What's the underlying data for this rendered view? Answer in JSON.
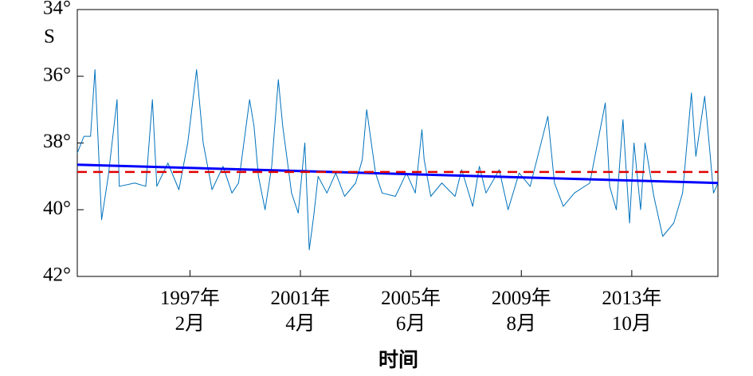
{
  "chart_data": {
    "type": "line",
    "x_label": "时间",
    "y_label": "S",
    "x": [
      "1992-11",
      "1993-02",
      "1993-05",
      "1993-07",
      "1993-10",
      "1994-01",
      "1994-05",
      "1994-06",
      "1995-01",
      "1995-06",
      "1995-09",
      "1995-11",
      "1996-04",
      "1996-09",
      "1997-01",
      "1997-05",
      "1997-08",
      "1997-12",
      "1998-05",
      "1998-09",
      "1998-12",
      "1999-05",
      "1999-07",
      "1999-09",
      "1999-12",
      "2000-03",
      "2000-06",
      "2000-08",
      "2000-12",
      "2001-03",
      "2001-06",
      "2001-08",
      "2001-10",
      "2001-12",
      "2002-04",
      "2002-08",
      "2002-12",
      "2003-05",
      "2003-08",
      "2003-10",
      "2004-02",
      "2004-05",
      "2004-11",
      "2005-04",
      "2005-08",
      "2005-11",
      "2005-12",
      "2006-03",
      "2006-08",
      "2007-02",
      "2007-05",
      "2007-10",
      "2008-01",
      "2008-04",
      "2008-10",
      "2009-02",
      "2009-07",
      "2009-12",
      "2010-08",
      "2010-11",
      "2011-03",
      "2011-08",
      "2012-03",
      "2012-10",
      "2012-12",
      "2013-03",
      "2013-06",
      "2013-09",
      "2013-11",
      "2014-02",
      "2014-04",
      "2014-08",
      "2014-12",
      "2015-05",
      "2015-09",
      "2016-01",
      "2016-03",
      "2016-07",
      "2016-09",
      "2016-11",
      "2017-01"
    ],
    "series": [
      {
        "color": "#0072bd",
        "width": 1,
        "values": [
          38.3,
          37.8,
          37.8,
          35.8,
          40.3,
          39,
          36.7,
          39.3,
          39.2,
          39.3,
          36.7,
          39.3,
          38.6,
          39.4,
          38,
          35.8,
          38,
          39.4,
          38.7,
          39.5,
          39.2,
          36.7,
          37.5,
          39,
          40,
          38.7,
          36.1,
          37.5,
          39.5,
          40.1,
          38,
          41.2,
          40.2,
          39,
          39.5,
          38.9,
          39.6,
          39.2,
          38.5,
          37,
          38.9,
          39.5,
          39.6,
          38.9,
          39.5,
          37.6,
          38.5,
          39.6,
          39.2,
          39.6,
          38.8,
          39.9,
          38.7,
          39.5,
          38.8,
          40,
          38.9,
          39.3,
          37.2,
          39.2,
          39.9,
          39.5,
          39.2,
          36.8,
          39.3,
          40,
          37.3,
          40.4,
          38,
          40,
          38,
          39.6,
          40.8,
          40.4,
          39.5,
          36.5,
          38.4,
          36.6,
          38,
          39.5,
          39.2
        ]
      },
      {
        "color": "#0000ff",
        "width": 3,
        "x": [
          "1992-11",
          "2017-01"
        ],
        "values": [
          38.65,
          39.2
        ]
      },
      {
        "color": "#e00000",
        "width": 2.5,
        "dash": true,
        "x": [
          "1992-11",
          "2017-01"
        ],
        "values": [
          38.87,
          38.87
        ]
      }
    ],
    "xlim": [
      "1992-11",
      "2017-01"
    ],
    "xticks": [
      {
        "value": "1997-02",
        "label": "1997年\n2月"
      },
      {
        "value": "2001-04",
        "label": "2001年\n4月"
      },
      {
        "value": "2005-06",
        "label": "2005年\n6月"
      },
      {
        "value": "2009-08",
        "label": "2009年\n8月"
      },
      {
        "value": "2013-10",
        "label": "2013年\n10月"
      }
    ],
    "ylim": [
      34,
      42
    ],
    "y_inverted": true,
    "yticks": [
      {
        "value": 34,
        "label": "34°"
      },
      {
        "value": 36,
        "label": "36°"
      },
      {
        "value": 38,
        "label": "38°"
      },
      {
        "value": 40,
        "label": "40°"
      },
      {
        "value": 42,
        "label": "42°"
      }
    ]
  }
}
